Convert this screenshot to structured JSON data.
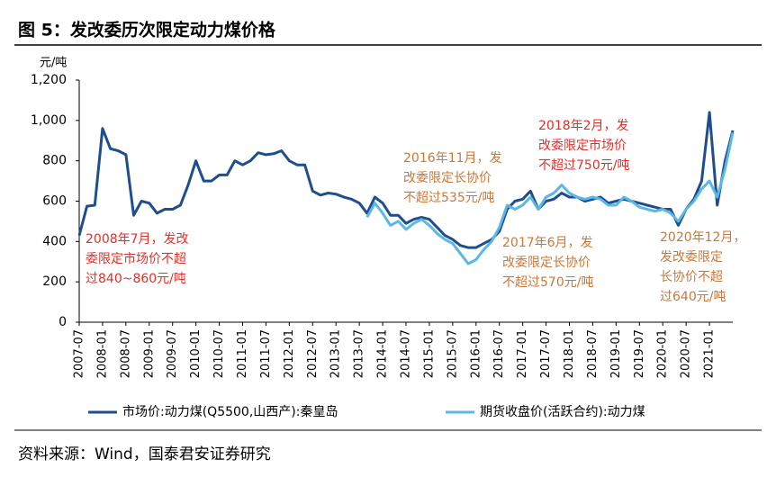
{
  "chart_data": {
    "type": "line",
    "title": "图 5：发改委历次限定动力煤价格",
    "y_label": "元/吨",
    "source": "资料来源：Wind，国泰君安证券研究",
    "x": [
      "2007-07",
      "2007-09",
      "2007-11",
      "2008-01",
      "2008-03",
      "2008-05",
      "2008-07",
      "2008-09",
      "2008-11",
      "2009-01",
      "2009-03",
      "2009-05",
      "2009-07",
      "2009-09",
      "2009-11",
      "2010-01",
      "2010-03",
      "2010-05",
      "2010-07",
      "2010-09",
      "2010-11",
      "2011-01",
      "2011-03",
      "2011-05",
      "2011-07",
      "2011-09",
      "2011-11",
      "2012-01",
      "2012-03",
      "2012-05",
      "2012-07",
      "2012-09",
      "2012-11",
      "2013-01",
      "2013-03",
      "2013-05",
      "2013-07",
      "2013-09",
      "2013-11",
      "2014-01",
      "2014-03",
      "2014-05",
      "2014-07",
      "2014-09",
      "2014-11",
      "2015-01",
      "2015-03",
      "2015-05",
      "2015-07",
      "2015-09",
      "2015-11",
      "2016-01",
      "2016-03",
      "2016-05",
      "2016-07",
      "2016-09",
      "2016-11",
      "2017-01",
      "2017-03",
      "2017-05",
      "2017-07",
      "2017-09",
      "2017-11",
      "2018-01",
      "2018-03",
      "2018-05",
      "2018-07",
      "2018-09",
      "2018-11",
      "2019-01",
      "2019-03",
      "2019-05",
      "2019-07",
      "2019-09",
      "2019-11",
      "2020-01",
      "2020-03",
      "2020-05",
      "2020-07",
      "2020-09",
      "2020-11",
      "2021-01",
      "2021-03",
      "2021-05",
      "2021-07"
    ],
    "series": [
      {
        "name": "市场价:动力煤(Q5500,山西产):秦皇岛",
        "color": "#1f4e8c",
        "values": [
          430,
          575,
          580,
          960,
          860,
          850,
          830,
          530,
          600,
          590,
          540,
          560,
          560,
          580,
          680,
          800,
          700,
          700,
          730,
          730,
          800,
          780,
          800,
          840,
          830,
          835,
          850,
          800,
          780,
          780,
          650,
          630,
          640,
          635,
          620,
          610,
          590,
          540,
          620,
          590,
          530,
          530,
          490,
          510,
          520,
          510,
          470,
          430,
          410,
          380,
          370,
          370,
          390,
          410,
          450,
          560,
          600,
          610,
          650,
          560,
          600,
          610,
          640,
          620,
          620,
          600,
          610,
          620,
          590,
          600,
          610,
          600,
          590,
          580,
          570,
          560,
          560,
          480,
          560,
          610,
          700,
          1040,
          580,
          800,
          950
        ]
      },
      {
        "name": "期货收盘价(活跃合约):动力煤",
        "color": "#5bb8e6",
        "values": [
          null,
          null,
          null,
          null,
          null,
          null,
          null,
          null,
          null,
          null,
          null,
          null,
          null,
          null,
          null,
          null,
          null,
          null,
          null,
          null,
          null,
          null,
          null,
          null,
          null,
          null,
          null,
          null,
          null,
          null,
          null,
          null,
          null,
          null,
          null,
          null,
          null,
          520,
          590,
          540,
          480,
          500,
          460,
          490,
          510,
          480,
          440,
          410,
          390,
          340,
          290,
          310,
          360,
          400,
          470,
          580,
          560,
          580,
          620,
          560,
          620,
          640,
          680,
          640,
          620,
          610,
          620,
          610,
          580,
          580,
          620,
          600,
          570,
          560,
          550,
          560,
          540,
          500,
          560,
          600,
          660,
          700,
          620,
          760,
          940
        ]
      }
    ],
    "xlim": [
      "2007-07",
      "2021-07"
    ],
    "xticks": [
      "2007-07",
      "2008-01",
      "2008-07",
      "2009-01",
      "2009-07",
      "2010-01",
      "2010-07",
      "2011-01",
      "2011-07",
      "2012-01",
      "2012-07",
      "2013-01",
      "2013-07",
      "2014-01",
      "2014-07",
      "2015-01",
      "2015-07",
      "2016-01",
      "2016-07",
      "2017-01",
      "2017-07",
      "2018-01",
      "2018-07",
      "2019-01",
      "2019-07",
      "2020-01",
      "2020-07",
      "2021-01"
    ],
    "ylim": [
      0,
      1200
    ],
    "yticks": [
      0,
      200,
      400,
      600,
      800,
      {
        "value": 1000,
        "label": "1,000"
      },
      {
        "value": 1200,
        "label": "1,200"
      }
    ],
    "annotations": [
      {
        "color": "#e0302a",
        "lines": [
          "2008年7月，发改",
          "委限定市场价不超",
          "过840~860元/吨"
        ]
      },
      {
        "color": "#c8783a",
        "lines": [
          "2016年11月，发",
          "改委限定长协价",
          "不超过535元/吨"
        ]
      },
      {
        "color": "#e0302a",
        "lines": [
          "2018年2月，发",
          "改委限定市场价",
          "不超过750元/吨"
        ]
      },
      {
        "color": "#c8783a",
        "lines": [
          "2017年6月，发",
          "改委限定长协价",
          "不超过570元/吨"
        ]
      },
      {
        "color": "#c8783a",
        "lines": [
          "2020年12月，",
          "发改委限定",
          "长协价不超",
          "过640元/吨"
        ]
      }
    ]
  }
}
